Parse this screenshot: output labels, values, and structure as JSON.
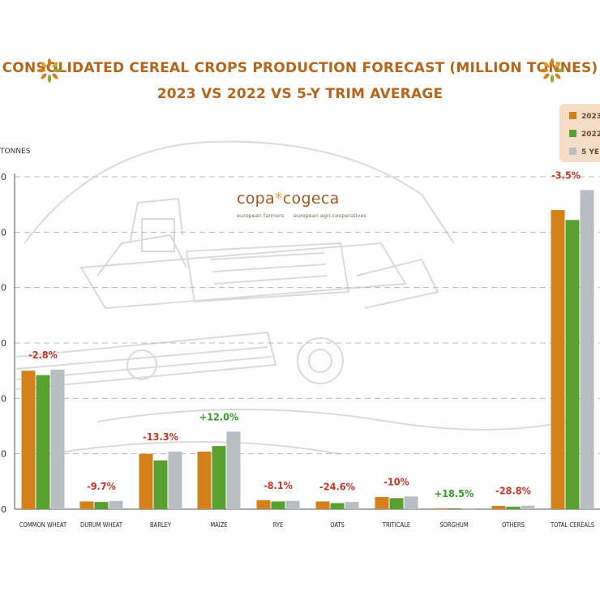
{
  "title_line1": "CONSOLIDATED CEREAL CROPS PRODUCTION FORECAST (MILLION TONNES)",
  "title_line2": "2023 VS 2022 VS 5-Y TRIM AVERAGE",
  "logo": {
    "brand_left": "copa",
    "brand_star": "*",
    "brand_right": "cogeca",
    "sub_left": "european farmers",
    "sub_right": "european agri-cooperatives"
  },
  "colors": {
    "title": "#b5651d",
    "bg_illustration": "#d8d8d8",
    "grid": "#bdbdbd"
  },
  "chart_data": {
    "type": "bar",
    "title": "CONSOLIDATED CEREAL CROPS PRODUCTION FORECAST (MILLION TONNES)",
    "subtitle": "2023 VS 2022 VS 5-Y TRIM AVERAGE",
    "ylabel": "TONNES",
    "ylim": [
      0,
      300
    ],
    "y_ticks_visible": [
      "0",
      "0",
      "0",
      "0",
      "0",
      "0",
      "0"
    ],
    "grid": true,
    "legend_position": "top-right",
    "categories": [
      "COMMON WHEAT",
      "DURUM WHEAT",
      "BARLEY",
      "MAIZE",
      "RYE",
      "OATS",
      "TRITICALE",
      "SORGHUM",
      "OTHERS",
      "TOTAL CEREALS"
    ],
    "series": [
      {
        "name": "2023",
        "color": "#d4811c",
        "values": [
          125,
          7,
          50,
          52,
          8,
          7,
          11,
          0.7,
          3,
          270
        ]
      },
      {
        "name": "2022",
        "color": "#58a030",
        "values": [
          121,
          6.5,
          44,
          57,
          7,
          5.5,
          10,
          0.8,
          2.3,
          261
        ]
      },
      {
        "name": "5 YE",
        "color": "#b9bec2",
        "values": [
          126,
          7.5,
          52,
          70,
          7.5,
          6.5,
          11.5,
          0.7,
          3.2,
          288
        ]
      }
    ],
    "annotations": [
      {
        "text": "-2.8%",
        "color": "#c0392b"
      },
      {
        "text": "-9.7%",
        "color": "#c0392b"
      },
      {
        "text": "-13.3%",
        "color": "#c0392b"
      },
      {
        "text": "+12.0%",
        "color": "#3a9a2a"
      },
      {
        "text": "-8.1%",
        "color": "#c0392b"
      },
      {
        "text": "-24.6%",
        "color": "#c0392b"
      },
      {
        "text": "-10%",
        "color": "#c0392b"
      },
      {
        "text": "+18.5%",
        "color": "#3a9a2a"
      },
      {
        "text": "-28.8%",
        "color": "#c0392b"
      },
      {
        "text": "-3.5%",
        "color": "#c0392b"
      }
    ]
  }
}
